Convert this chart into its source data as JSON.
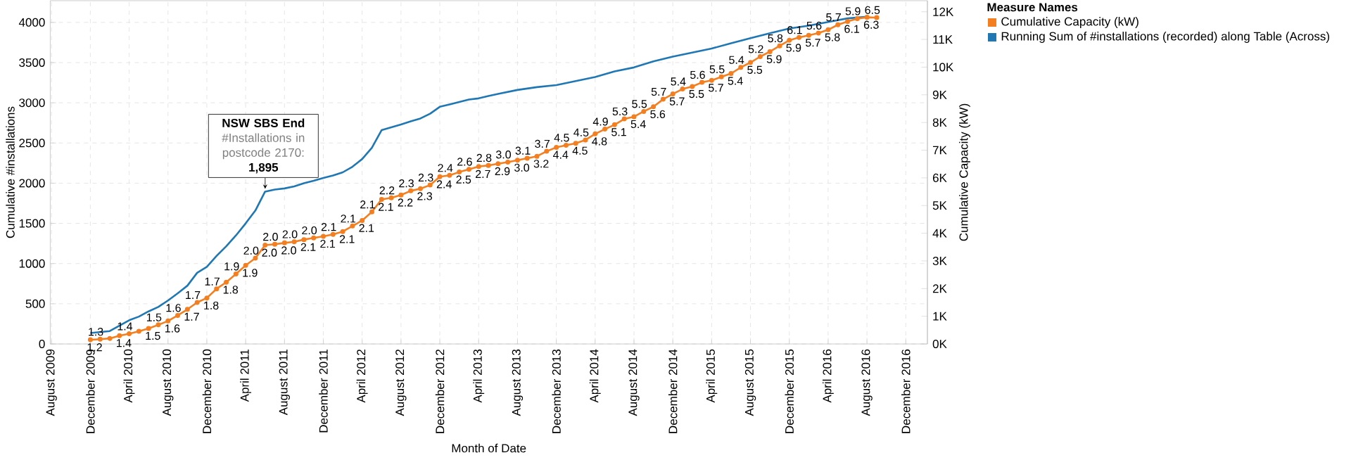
{
  "chart_data": {
    "type": "line",
    "xlabel": "Month of Date",
    "ylabel": "Cumulative #installations",
    "y2label": "Cumulative Capacity (kW)",
    "legend_title": "Measure Names",
    "legend": "top right",
    "grid": true,
    "xlim": [
      "2009-07-28",
      "2017-02-08"
    ],
    "xticks": [
      {
        "value": "2009-08",
        "label": "August 2009"
      },
      {
        "value": "2009-12",
        "label": "December 2009"
      },
      {
        "value": "2010-04",
        "label": "April 2010"
      },
      {
        "value": "2010-08",
        "label": "August 2010"
      },
      {
        "value": "2010-12",
        "label": "December 2010"
      },
      {
        "value": "2011-04",
        "label": "April 2011"
      },
      {
        "value": "2011-08",
        "label": "August 2011"
      },
      {
        "value": "2011-12",
        "label": "December 2011"
      },
      {
        "value": "2012-04",
        "label": "April 2012"
      },
      {
        "value": "2012-08",
        "label": "August 2012"
      },
      {
        "value": "2012-12",
        "label": "December 2012"
      },
      {
        "value": "2013-04",
        "label": "April 2013"
      },
      {
        "value": "2013-08",
        "label": "August 2013"
      },
      {
        "value": "2013-12",
        "label": "December 2013"
      },
      {
        "value": "2014-04",
        "label": "April 2014"
      },
      {
        "value": "2014-08",
        "label": "August 2014"
      },
      {
        "value": "2014-12",
        "label": "December 2014"
      },
      {
        "value": "2015-04",
        "label": "April 2015"
      },
      {
        "value": "2015-08",
        "label": "August 2015"
      },
      {
        "value": "2015-12",
        "label": "December 2015"
      },
      {
        "value": "2016-04",
        "label": "April 2016"
      },
      {
        "value": "2016-08",
        "label": "August 2016"
      },
      {
        "value": "2016-12",
        "label": "December 2016"
      }
    ],
    "ylim": [
      0,
      4270
    ],
    "yticks": [
      0,
      500,
      1000,
      1500,
      2000,
      2500,
      3000,
      3500,
      4000
    ],
    "y2lim": [
      0,
      12400
    ],
    "y2ticks": [
      {
        "value": 0,
        "label": "0K"
      },
      {
        "value": 1000,
        "label": "1K"
      },
      {
        "value": 2000,
        "label": "2K"
      },
      {
        "value": 3000,
        "label": "3K"
      },
      {
        "value": 4000,
        "label": "4K"
      },
      {
        "value": 5000,
        "label": "5K"
      },
      {
        "value": 6000,
        "label": "6K"
      },
      {
        "value": 7000,
        "label": "7K"
      },
      {
        "value": 8000,
        "label": "8K"
      },
      {
        "value": 9000,
        "label": "9K"
      },
      {
        "value": 10000,
        "label": "10K"
      },
      {
        "value": 11000,
        "label": "11K"
      },
      {
        "value": 12000,
        "label": "12K"
      }
    ],
    "annotations": [
      "NSW SBS End",
      "#Installations in postcode 2170:",
      "1,895",
      "1.2",
      "1.3",
      "1.4",
      "1.4",
      "1.5",
      "1.5",
      "1.6",
      "1.6",
      "1.7",
      "1.7",
      "1.8",
      "1.7",
      "1.8",
      "1.9",
      "1.9",
      "2.0",
      "2.0",
      "2.0",
      "2.0",
      "2.0",
      "2.1",
      "2.0",
      "2.1",
      "2.1",
      "2.1",
      "2.1",
      "2.1",
      "2.1",
      "2.1",
      "2.2",
      "2.2",
      "2.3",
      "2.3",
      "2.3",
      "2.4",
      "2.4",
      "2.5",
      "2.6",
      "2.7",
      "2.8",
      "2.9",
      "3.0",
      "3.0",
      "3.1",
      "3.2",
      "3.7",
      "4.4",
      "4.5",
      "4.5",
      "4.5",
      "4.8",
      "4.9",
      "5.1",
      "5.3",
      "5.4",
      "5.5",
      "5.6",
      "5.7",
      "5.7",
      "5.4",
      "5.5",
      "5.6",
      "5.7",
      "5.5",
      "5.4",
      "5.4",
      "5.5",
      "5.2",
      "5.9",
      "5.8",
      "5.9",
      "6.1",
      "5.7",
      "5.6",
      "5.8",
      "5.7",
      "6.1",
      "5.9",
      "6.3",
      "6.5"
    ],
    "series": [
      {
        "name": "Cumulative Capacity (kW)",
        "color": "#f47f20",
        "axis": "y2",
        "marker": "circle",
        "x": [
          "2009-12",
          "2010-01",
          "2010-02",
          "2010-03",
          "2010-04",
          "2010-05",
          "2010-06",
          "2010-07",
          "2010-08",
          "2010-09",
          "2010-10",
          "2010-11",
          "2010-12",
          "2011-01",
          "2011-02",
          "2011-03",
          "2011-04",
          "2011-05",
          "2011-06",
          "2011-07",
          "2011-08",
          "2011-09",
          "2011-10",
          "2011-11",
          "2011-12",
          "2012-01",
          "2012-02",
          "2012-03",
          "2012-04",
          "2012-05",
          "2012-06",
          "2012-07",
          "2012-08",
          "2012-09",
          "2012-10",
          "2012-11",
          "2012-12",
          "2013-01",
          "2013-02",
          "2013-03",
          "2013-04",
          "2013-05",
          "2013-06",
          "2013-07",
          "2013-08",
          "2013-09",
          "2013-10",
          "2013-11",
          "2013-12",
          "2014-01",
          "2014-02",
          "2014-03",
          "2014-04",
          "2014-05",
          "2014-06",
          "2014-07",
          "2014-08",
          "2014-09",
          "2014-10",
          "2014-11",
          "2014-12",
          "2015-01",
          "2015-02",
          "2015-03",
          "2015-04",
          "2015-05",
          "2015-06",
          "2015-07",
          "2015-08",
          "2015-09",
          "2015-10",
          "2015-11",
          "2015-12",
          "2016-01",
          "2016-02",
          "2016-03",
          "2016-04",
          "2016-05",
          "2016-06",
          "2016-07",
          "2016-08",
          "2016-09"
        ],
        "values": [
          150,
          170,
          200,
          300,
          370,
          460,
          560,
          690,
          830,
          1030,
          1250,
          1500,
          1660,
          1990,
          2230,
          2530,
          2840,
          3100,
          3570,
          3600,
          3650,
          3690,
          3770,
          3830,
          3890,
          3960,
          4060,
          4260,
          4460,
          4770,
          5220,
          5280,
          5380,
          5530,
          5610,
          5740,
          6040,
          6090,
          6210,
          6310,
          6410,
          6450,
          6510,
          6570,
          6640,
          6710,
          6780,
          6960,
          7100,
          7180,
          7250,
          7370,
          7590,
          7760,
          7920,
          8130,
          8210,
          8400,
          8570,
          8840,
          9030,
          9210,
          9300,
          9450,
          9520,
          9650,
          9770,
          9990,
          10170,
          10380,
          10560,
          10770,
          10970,
          11070,
          11150,
          11230,
          11350,
          11530,
          11650,
          11750,
          11800,
          11790
        ]
      },
      {
        "name": "Running Sum of #installations (recorded) along Table (Across)",
        "color": "#1f77b4",
        "marker": "none",
        "x": [
          "2009-12",
          "2010-02",
          "2010-04",
          "2010-05",
          "2010-06",
          "2010-07",
          "2010-08",
          "2010-09",
          "2010-10",
          "2010-11",
          "2010-12",
          "2011-01",
          "2011-02",
          "2011-03",
          "2011-04",
          "2011-05",
          "2011-06",
          "2011-07",
          "2011-08",
          "2011-09",
          "2011-10",
          "2011-11",
          "2011-12",
          "2012-01",
          "2012-02",
          "2012-03",
          "2012-04",
          "2012-05",
          "2012-06",
          "2012-07",
          "2012-08",
          "2012-09",
          "2012-10",
          "2012-11",
          "2012-12",
          "2013-01",
          "2013-02",
          "2013-03",
          "2013-04",
          "2013-05",
          "2013-06",
          "2013-08",
          "2013-10",
          "2013-12",
          "2014-02",
          "2014-04",
          "2014-06",
          "2014-08",
          "2014-10",
          "2014-12",
          "2015-02",
          "2015-04",
          "2015-06",
          "2015-08",
          "2015-10",
          "2015-12",
          "2016-02",
          "2016-04",
          "2016-06",
          "2016-08"
        ],
        "values": [
          135,
          160,
          295,
          340,
          405,
          460,
          540,
          630,
          725,
          885,
          960,
          1095,
          1215,
          1350,
          1500,
          1660,
          1895,
          1920,
          1935,
          1960,
          2000,
          2030,
          2065,
          2095,
          2135,
          2205,
          2300,
          2440,
          2660,
          2695,
          2730,
          2770,
          2805,
          2865,
          2950,
          2980,
          3010,
          3040,
          3055,
          3085,
          3110,
          3160,
          3195,
          3220,
          3270,
          3320,
          3390,
          3440,
          3515,
          3575,
          3625,
          3675,
          3740,
          3805,
          3865,
          3925,
          3960,
          4005,
          4050,
          4070
        ]
      }
    ]
  }
}
